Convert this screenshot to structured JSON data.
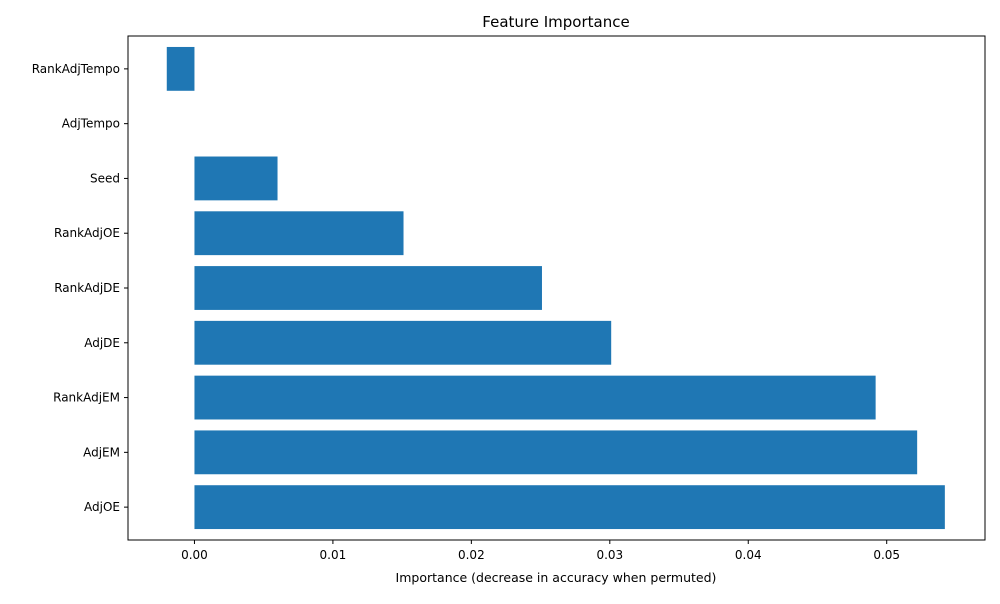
{
  "chart_data": {
    "type": "bar",
    "orientation": "horizontal",
    "title": "Feature Importance",
    "xlabel": "Importance (decrease in accuracy when permuted)",
    "ylabel": "",
    "categories": [
      "RankAdjTempo",
      "AdjTempo",
      "Seed",
      "RankAdjOE",
      "RankAdjDE",
      "AdjDE",
      "RankAdjEM",
      "AdjEM",
      "AdjOE"
    ],
    "values": [
      -0.002,
      0.0,
      0.006,
      0.0151,
      0.0251,
      0.0301,
      0.0492,
      0.0522,
      0.0542
    ],
    "xlim": [
      -0.0048,
      0.0571
    ],
    "xticks": [
      0.0,
      0.01,
      0.02,
      0.03,
      0.04,
      0.05
    ],
    "xtick_labels": [
      "0.00",
      "0.01",
      "0.02",
      "0.03",
      "0.04",
      "0.05"
    ],
    "grid": false,
    "bar_color": "#1f77b4"
  }
}
